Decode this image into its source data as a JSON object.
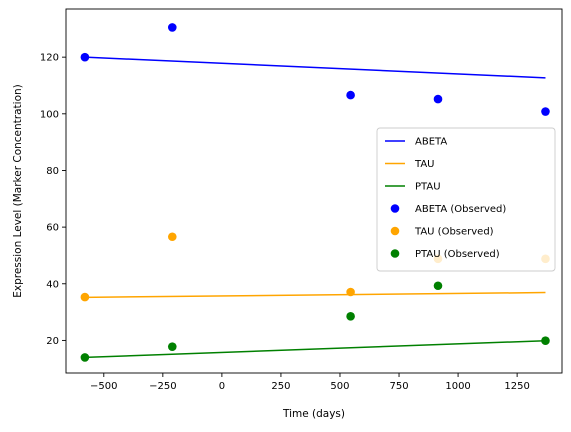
{
  "chart_data": {
    "type": "scatter",
    "title": "",
    "xlabel": "Time (days)",
    "ylabel": "Expression Level (Marker Concentration)",
    "xlim": [
      -660,
      1440
    ],
    "ylim": [
      8.5,
      137
    ],
    "grid": false,
    "legend_placement": "center-right",
    "xticks": [
      -500,
      -250,
      0,
      250,
      500,
      750,
      1000,
      1250
    ],
    "yticks": [
      20,
      40,
      60,
      80,
      100,
      120
    ],
    "observed_x": [
      -580,
      -210,
      545,
      915,
      1370
    ],
    "series": [
      {
        "name": "ABETA",
        "kind": "line",
        "color": "#0000ff",
        "x": [
          -580,
          1370
        ],
        "values": [
          120.0,
          112.7
        ]
      },
      {
        "name": "TAU",
        "kind": "line",
        "color": "#ffa500",
        "x": [
          -580,
          1370
        ],
        "values": [
          35.2,
          36.9
        ]
      },
      {
        "name": "PTAU",
        "kind": "line",
        "color": "#008000",
        "x": [
          -580,
          1370
        ],
        "values": [
          14.0,
          19.9
        ]
      },
      {
        "name": "ABETA (Observed)",
        "kind": "scatter",
        "color": "#0000ff",
        "values": [
          120.0,
          130.5,
          106.6,
          105.2,
          100.8
        ]
      },
      {
        "name": "TAU (Observed)",
        "kind": "scatter",
        "color": "#ffa500",
        "values": [
          35.3,
          56.6,
          37.1,
          48.8,
          48.8
        ]
      },
      {
        "name": "PTAU (Observed)",
        "kind": "scatter",
        "color": "#008000",
        "values": [
          14.0,
          17.8,
          28.5,
          39.3,
          19.9
        ]
      }
    ]
  }
}
